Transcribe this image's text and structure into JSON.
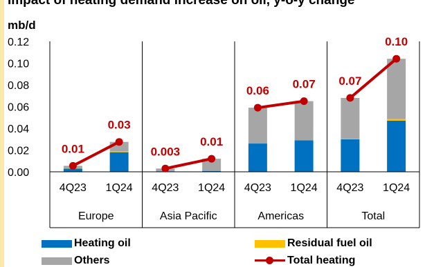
{
  "chart_data": {
    "type": "bar",
    "stacked": true,
    "title": "Impact of heating demand increase on oil, y-o-y change",
    "ylabel": "mb/d",
    "xlabel": "",
    "ylim": [
      0,
      0.12
    ],
    "yticks": [
      "0.00",
      "0.02",
      "0.04",
      "0.06",
      "0.08",
      "0.10",
      "0.12"
    ],
    "categories": [
      "4Q23",
      "1Q24",
      "4Q23",
      "1Q24",
      "4Q23",
      "1Q24",
      "4Q23",
      "1Q24"
    ],
    "groups": [
      {
        "name": "Europe",
        "span": 2
      },
      {
        "name": "Asia Pacific",
        "span": 2
      },
      {
        "name": "Americas",
        "span": 2
      },
      {
        "name": "Total",
        "span": 2
      }
    ],
    "series": [
      {
        "name": "Heating oil",
        "kind": "bar",
        "color": "#0070c0",
        "values": [
          0.003,
          0.018,
          0.0005,
          0.0008,
          0.026,
          0.029,
          0.03,
          0.047
        ]
      },
      {
        "name": "Residual fuel oil",
        "kind": "bar",
        "color": "#ffc000",
        "values": [
          0.0005,
          0.001,
          0.0,
          0.0,
          0.0,
          0.0,
          0.0005,
          0.0015
        ]
      },
      {
        "name": "Others",
        "kind": "bar",
        "color": "#a6a6a6",
        "values": [
          0.002,
          0.0085,
          0.0025,
          0.0112,
          0.033,
          0.036,
          0.0375,
          0.0555
        ]
      },
      {
        "name": "Total heating",
        "kind": "line",
        "color": "#c00000",
        "values": [
          0.0055,
          0.0275,
          0.003,
          0.012,
          0.059,
          0.065,
          0.068,
          0.104
        ]
      }
    ],
    "data_labels": [
      "0.01",
      "0.03",
      "0.003",
      "0.01",
      "0.06",
      "0.07",
      "0.07",
      "0.10"
    ],
    "line_segments": [
      [
        0,
        1
      ],
      [
        2,
        3
      ],
      [
        4,
        5
      ],
      [
        6,
        7
      ]
    ],
    "grid": false,
    "legend_position": "bottom"
  }
}
